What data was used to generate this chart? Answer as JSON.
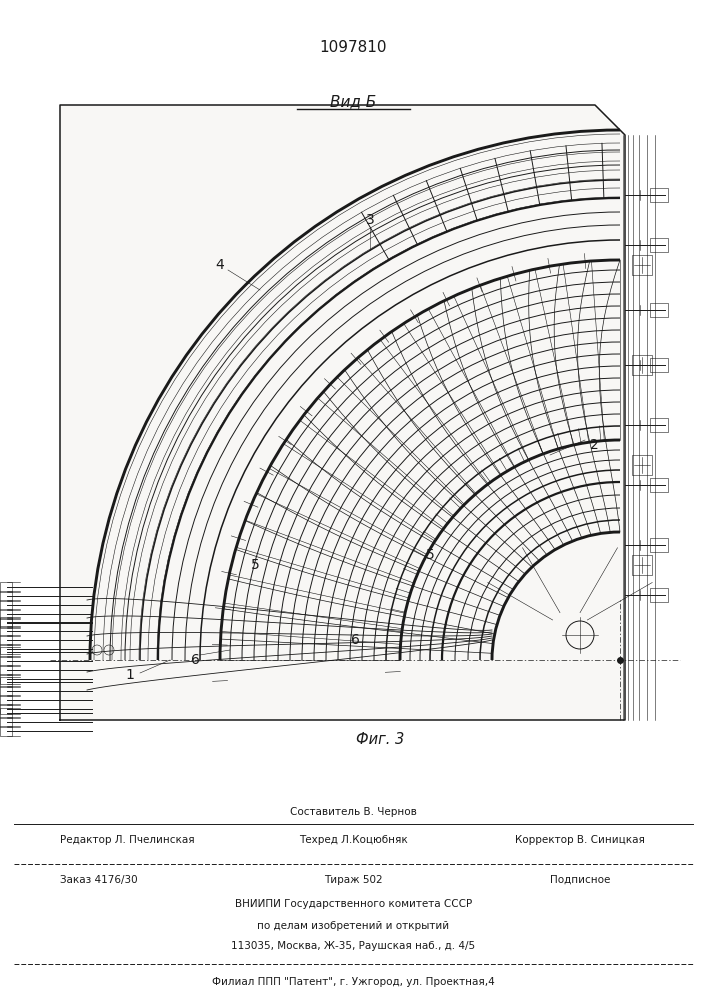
{
  "patent_number": "1097810",
  "view_label": "Вид Б",
  "fig_label": "Фиг. 3",
  "line_color": "#1a1a1a",
  "bg_color": "#f8f7f5",
  "editor_line": "Редактор Л. Пчелинская",
  "composer_line": "Составитель В. Чернов",
  "techred_line": "Техред Л.Коцюбняк",
  "corrector_line": "Корректор В. Синицкая",
  "order_line": "Заказ 4176/30",
  "tirazh_line": "Тираж 502",
  "podpisnoe_line": "Подписное",
  "vniiipi_line": "ВНИИПИ Государственного комитета СССР",
  "dela_line": "по делам изобретений и открытий",
  "address_line": "113035, Москва, Ж-35, Раушская наб., д. 4/5",
  "filial_line": "Филиал ППП \"Патент\", г. Ужгород, ул. Проектная,4"
}
